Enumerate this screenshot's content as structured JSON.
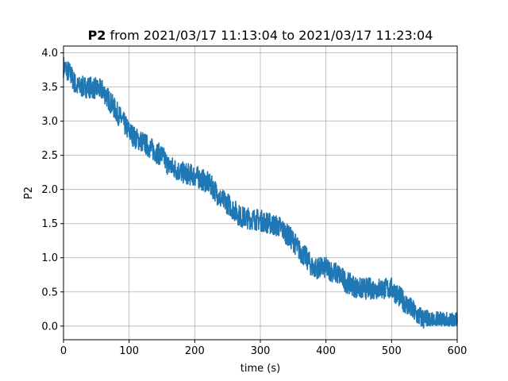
{
  "chart_data": {
    "type": "line",
    "title_bold": "P2",
    "title_rest": " from 2021/03/17 11:13:04 to 2021/03/17 11:23:04",
    "xlabel": "time (s)",
    "ylabel": "P2",
    "xlim": [
      0,
      600
    ],
    "ylim": [
      -0.2,
      4.1
    ],
    "xticks": [
      "0",
      "100",
      "200",
      "300",
      "400",
      "500",
      "600"
    ],
    "yticks": [
      "0.0",
      "0.5",
      "1.0",
      "1.5",
      "2.0",
      "2.5",
      "3.0",
      "3.5",
      "4.0"
    ],
    "grid": true,
    "line_color": "#1f77b4",
    "noise_band": 0.16,
    "series": [
      {
        "x": [
          0,
          10,
          20,
          40,
          60,
          70,
          80,
          90,
          100,
          110,
          120,
          140,
          150,
          160,
          170,
          180,
          200,
          220,
          230,
          240,
          250,
          260,
          270,
          300,
          330,
          340,
          350,
          360,
          370,
          380,
          400,
          420,
          430,
          440,
          450,
          460,
          480,
          500,
          510,
          520,
          530,
          540,
          550,
          560,
          570,
          580,
          590,
          600
        ],
        "values": [
          3.8,
          3.7,
          3.5,
          3.5,
          3.45,
          3.3,
          3.15,
          3.0,
          2.85,
          2.75,
          2.7,
          2.55,
          2.5,
          2.35,
          2.3,
          2.25,
          2.2,
          2.1,
          2.0,
          1.85,
          1.8,
          1.7,
          1.6,
          1.55,
          1.45,
          1.35,
          1.25,
          1.1,
          1.0,
          0.85,
          0.85,
          0.75,
          0.65,
          0.6,
          0.55,
          0.55,
          0.55,
          0.55,
          0.45,
          0.35,
          0.25,
          0.15,
          0.1,
          0.05,
          0.05,
          0.05,
          0.05,
          0.05
        ]
      }
    ]
  }
}
